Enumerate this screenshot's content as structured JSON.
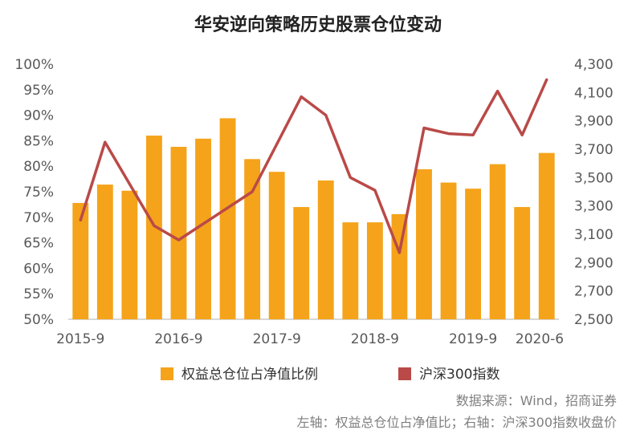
{
  "chart_data": {
    "type": "bar+line",
    "title": "华安逆向策略历史股票仓位变动",
    "x_tick_labels": [
      "2015-9",
      "2016-9",
      "2017-9",
      "2018-9",
      "2019-9",
      "2020-6"
    ],
    "left_axis": {
      "tick_labels": [
        "50%",
        "55%",
        "60%",
        "65%",
        "70%",
        "75%",
        "80%",
        "85%",
        "90%",
        "95%",
        "100%"
      ],
      "range": [
        50,
        100
      ]
    },
    "right_axis": {
      "tick_labels": [
        "2,500",
        "2,700",
        "2,900",
        "3,100",
        "3,300",
        "3,500",
        "3,700",
        "3,900",
        "4,100",
        "4,300"
      ],
      "range": [
        2500,
        4300
      ]
    },
    "series": [
      {
        "name": "权益总仓位占净值比例",
        "kind": "bar",
        "axis": "left",
        "color": "#F5A31A",
        "values": [
          72.8,
          76.4,
          75.2,
          86.0,
          83.8,
          85.4,
          89.4,
          81.4,
          78.9,
          72.0,
          77.2,
          69.0,
          69.0,
          70.6,
          79.4,
          76.8,
          75.6,
          80.4,
          72.0,
          82.6
        ]
      },
      {
        "name": "沪深300指数",
        "kind": "line",
        "axis": "right",
        "color": "#B94A48",
        "points": [
          {
            "x": 0,
            "y": 3200
          },
          {
            "x": 1,
            "y": 3750
          },
          {
            "x": 3,
            "y": 3160
          },
          {
            "x": 4,
            "y": 3060
          },
          {
            "x": 7,
            "y": 3400
          },
          {
            "x": 9,
            "y": 4070
          },
          {
            "x": 10,
            "y": 3940
          },
          {
            "x": 11,
            "y": 3500
          },
          {
            "x": 12,
            "y": 3410
          },
          {
            "x": 13,
            "y": 2970
          },
          {
            "x": 14,
            "y": 3850
          },
          {
            "x": 15,
            "y": 3810
          },
          {
            "x": 16,
            "y": 3800
          },
          {
            "x": 17,
            "y": 4110
          },
          {
            "x": 18,
            "y": 3800
          },
          {
            "x": 19,
            "y": 4190
          }
        ]
      }
    ],
    "legend": [
      "权益总仓位占净值比例",
      "沪深300指数"
    ],
    "legend_position": "bottom",
    "grid": false
  },
  "source_lines": [
    "数据来源：Wind，招商证券",
    "左轴：权益总仓位占净值比；右轴：沪深300指数收盘价"
  ]
}
